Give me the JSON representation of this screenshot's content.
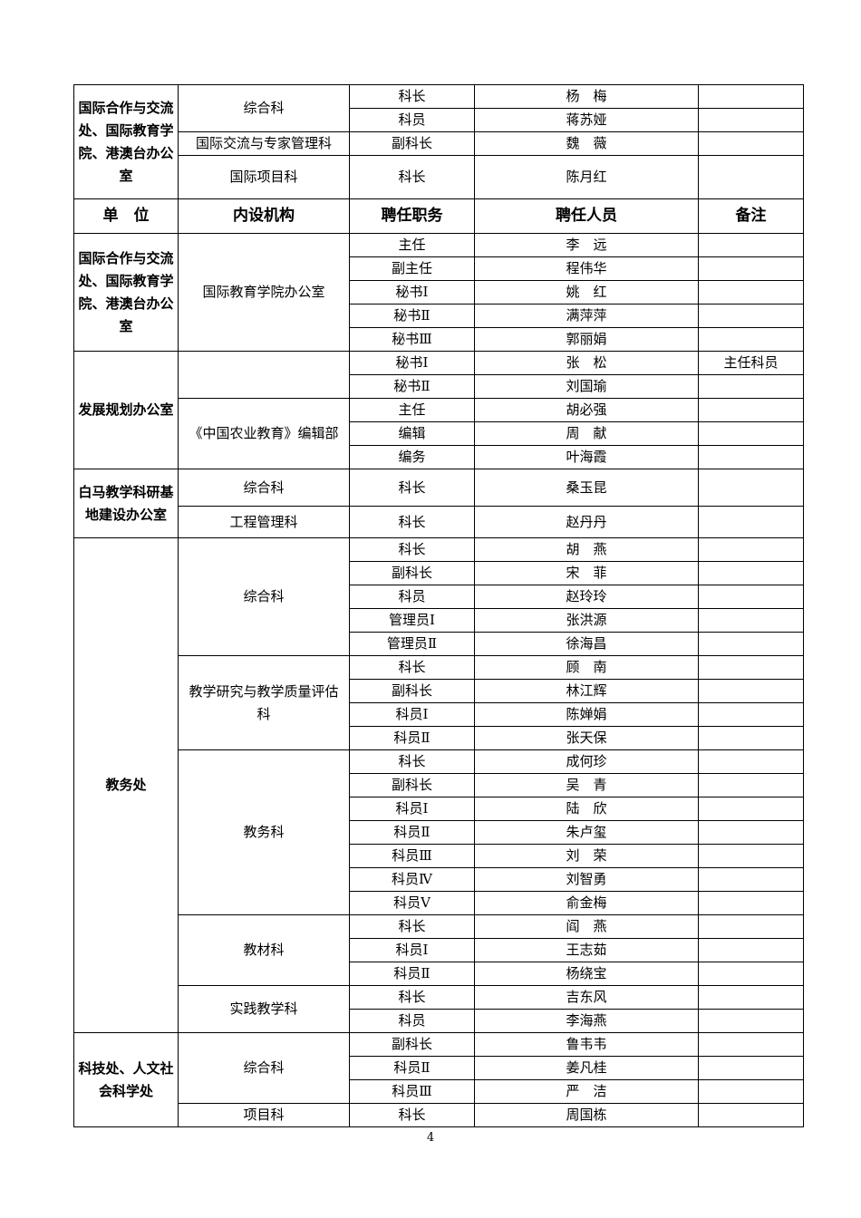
{
  "header": {
    "unit": "单　位",
    "section": "内设机构",
    "position": "聘任职务",
    "person": "聘任人员",
    "note": "备注"
  },
  "blocks": [
    {
      "unit": "国际合作与交流处、国际教育学院、港澳台办公室",
      "sections": [
        {
          "name": "综合科",
          "rows": [
            {
              "position": "科长",
              "person": "杨　梅"
            },
            {
              "position": "科员",
              "person": "蒋苏娅"
            }
          ]
        },
        {
          "name": "国际交流与专家管理科",
          "rows": [
            {
              "position": "副科长",
              "person": "魏　薇"
            }
          ]
        },
        {
          "name": "国际项目科",
          "rows": [
            {
              "position": "科长",
              "person": "陈月红",
              "tall": true
            }
          ]
        }
      ]
    },
    {
      "type": "header"
    },
    {
      "unit": "国际合作与交流处、国际教育学院、港澳台办公室",
      "sections": [
        {
          "name": "国际教育学院办公室",
          "rows": [
            {
              "position": "主任",
              "person": "李　远"
            },
            {
              "position": "副主任",
              "person": "程伟华"
            },
            {
              "position": "秘书Ⅰ",
              "person": "姚　红"
            },
            {
              "position": "秘书Ⅱ",
              "person": "满萍萍"
            },
            {
              "position": "秘书Ⅲ",
              "person": "郭丽娟"
            }
          ]
        }
      ]
    },
    {
      "unit": "发展规划办公室",
      "sections": [
        {
          "name": "",
          "rows": [
            {
              "position": "秘书Ⅰ",
              "person": "张　松",
              "note": "主任科员"
            },
            {
              "position": "秘书Ⅱ",
              "person": "刘国瑜"
            }
          ]
        },
        {
          "name": "《中国农业教育》编辑部",
          "rows": [
            {
              "position": "主任",
              "person": "胡必强"
            },
            {
              "position": "编辑",
              "person": "周　献"
            },
            {
              "position": "编务",
              "person": "叶海霞"
            }
          ]
        }
      ]
    },
    {
      "unit": "白马教学科研基地建设办公室",
      "sections": [
        {
          "name": "综合科",
          "rows": [
            {
              "position": "科长",
              "person": "桑玉昆",
              "h": 41
            }
          ]
        },
        {
          "name": "工程管理科",
          "rows": [
            {
              "position": "科长",
              "person": "赵丹丹",
              "h": 35
            }
          ]
        }
      ]
    },
    {
      "unit": "教务处",
      "sections": [
        {
          "name": "综合科",
          "rows": [
            {
              "position": "科长",
              "person": "胡　燕"
            },
            {
              "position": "副科长",
              "person": "宋　菲"
            },
            {
              "position": "科员",
              "person": "赵玲玲"
            },
            {
              "position": "管理员Ⅰ",
              "person": "张洪源"
            },
            {
              "position": "管理员Ⅱ",
              "person": "徐海昌"
            }
          ]
        },
        {
          "name": "教学研究与教学质量评估科",
          "rows": [
            {
              "position": "科长",
              "person": "顾　南"
            },
            {
              "position": "副科长",
              "person": "林江辉"
            },
            {
              "position": "科员Ⅰ",
              "person": "陈婵娟"
            },
            {
              "position": "科员Ⅱ",
              "person": "张天保"
            }
          ]
        },
        {
          "name": "教务科",
          "rows": [
            {
              "position": "科长",
              "person": "成何珍"
            },
            {
              "position": "副科长",
              "person": "吴　青"
            },
            {
              "position": "科员Ⅰ",
              "person": "陆　欣"
            },
            {
              "position": "科员Ⅱ",
              "person": "朱卢玺"
            },
            {
              "position": "科员Ⅲ",
              "person": "刘　荣"
            },
            {
              "position": "科员Ⅳ",
              "person": "刘智勇"
            },
            {
              "position": "科员Ⅴ",
              "person": "俞金梅"
            }
          ]
        },
        {
          "name": "教材科",
          "rows": [
            {
              "position": "科长",
              "person": "阎　燕"
            },
            {
              "position": "科员Ⅰ",
              "person": "王志茹"
            },
            {
              "position": "科员Ⅱ",
              "person": "杨绕宝"
            }
          ]
        },
        {
          "name": "实践教学科",
          "rows": [
            {
              "position": "科长",
              "person": "吉东风"
            },
            {
              "position": "科员",
              "person": "李海燕"
            }
          ]
        }
      ]
    },
    {
      "unit": "科技处、人文社会科学处",
      "sections": [
        {
          "name": "综合科",
          "rows": [
            {
              "position": "副科长",
              "person": "鲁韦韦"
            },
            {
              "position": "科员Ⅱ",
              "person": "姜凡桂"
            },
            {
              "position": "科员Ⅲ",
              "person": "严　洁"
            }
          ]
        },
        {
          "name": "项目科",
          "rows": [
            {
              "position": "科长",
              "person": "周国栋"
            }
          ]
        }
      ]
    }
  ],
  "page_number": "4"
}
